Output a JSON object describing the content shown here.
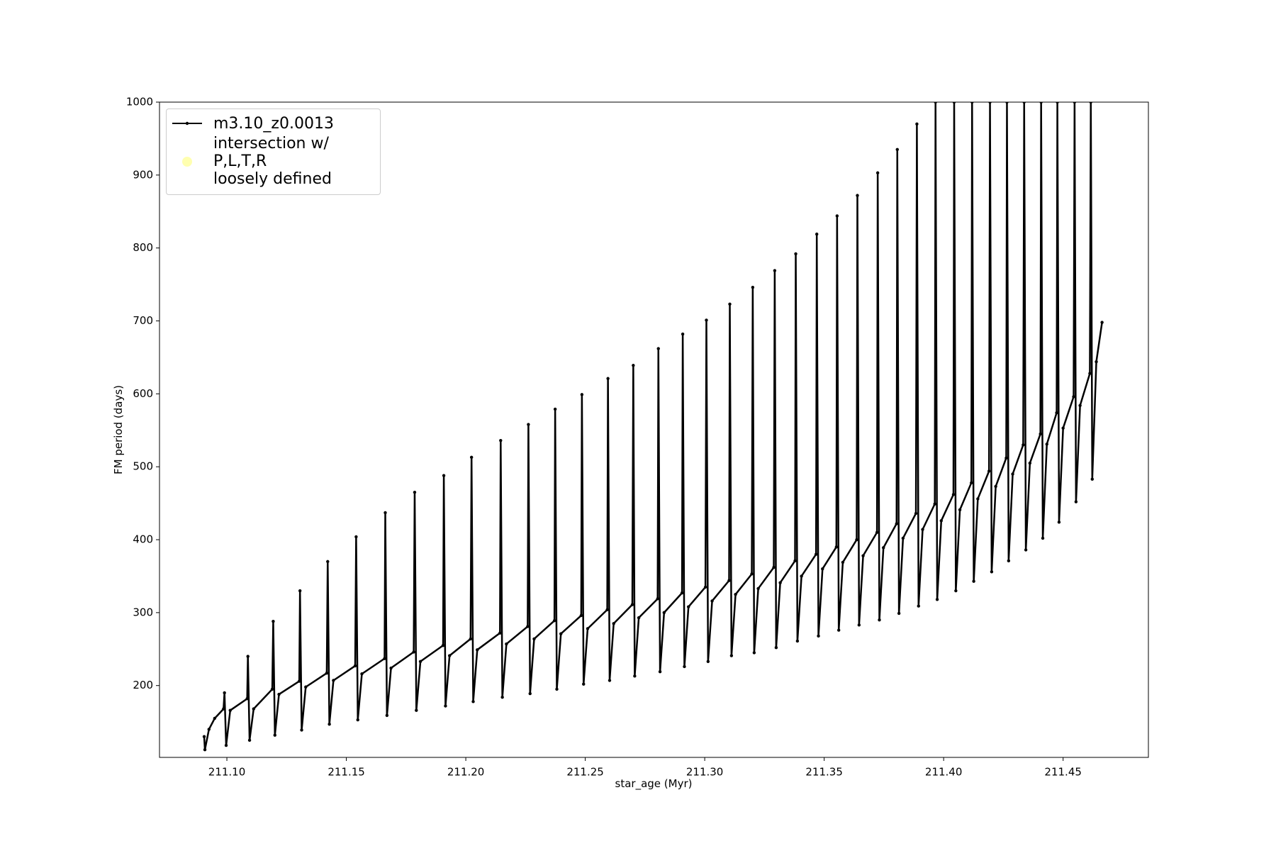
{
  "chart_data": {
    "type": "line",
    "xlabel": "star_age (Myr)",
    "ylabel": "FM period (days)",
    "xlim": [
      211.0718,
      211.4857
    ],
    "ylim": [
      101.5,
      1000
    ],
    "xticks": [
      {
        "value": 211.1,
        "label": "211.10"
      },
      211.15,
      {
        "value": 211.2,
        "label": "211.20"
      },
      211.25,
      {
        "value": 211.3,
        "label": "211.30"
      },
      211.35,
      {
        "value": 211.4,
        "label": "211.40"
      },
      211.45
    ],
    "yticks": [
      200,
      300,
      400,
      500,
      600,
      700,
      800,
      900,
      1000
    ],
    "legend": "upper left",
    "x": [
      211.0905,
      211.0908,
      211.0925,
      211.0949,
      211.0986,
      211.099,
      211.0997,
      211.1014,
      211.1085,
      211.1088,
      211.1095,
      211.1112,
      211.119,
      211.1194,
      211.1201,
      211.1218,
      211.1303,
      211.1306,
      211.1313,
      211.133,
      211.1418,
      211.1422,
      211.1429,
      211.1446,
      211.1537,
      211.1541,
      211.1548,
      211.1565,
      211.166,
      211.1663,
      211.167,
      211.1687,
      211.1782,
      211.1786,
      211.1793,
      211.181,
      211.1905,
      211.1908,
      211.1915,
      211.1932,
      211.202,
      211.2024,
      211.2031,
      211.2048,
      211.2143,
      211.2146,
      211.2153,
      211.217,
      211.2259,
      211.2262,
      211.2269,
      211.2286,
      211.2371,
      211.2374,
      211.2381,
      211.2398,
      211.2483,
      211.2486,
      211.2493,
      211.251,
      211.2592,
      211.2595,
      211.2602,
      211.2619,
      211.2697,
      211.2701,
      211.2707,
      211.2724,
      211.2803,
      211.2806,
      211.2813,
      211.283,
      211.2905,
      211.2908,
      211.2915,
      211.2932,
      211.3003,
      211.3007,
      211.3014,
      211.3031,
      211.3102,
      211.3105,
      211.3112,
      211.3129,
      211.3197,
      211.3201,
      211.3207,
      211.3224,
      211.3289,
      211.3293,
      211.3299,
      211.3316,
      211.3378,
      211.3381,
      211.3388,
      211.3405,
      211.3466,
      211.3469,
      211.3476,
      211.3493,
      211.3551,
      211.3554,
      211.3561,
      211.3578,
      211.3636,
      211.3639,
      211.3646,
      211.3663,
      211.3721,
      211.3724,
      211.3731,
      211.3748,
      211.3803,
      211.3806,
      211.3813,
      211.383,
      211.3884,
      211.3888,
      211.3895,
      211.3912,
      211.3963,
      211.3966,
      211.3973,
      211.399,
      211.4041,
      211.4044,
      211.4051,
      211.4068,
      211.4116,
      211.4119,
      211.4126,
      211.4143,
      211.419,
      211.4194,
      211.4201,
      211.4218,
      211.4262,
      211.4265,
      211.4272,
      211.4289,
      211.4333,
      211.4337,
      211.4344,
      211.4361,
      211.4405,
      211.4408,
      211.4415,
      211.4432,
      211.4473,
      211.4476,
      211.4483,
      211.45,
      211.4544,
      211.4548,
      211.4554,
      211.4571,
      211.4612,
      211.4616,
      211.4622,
      211.4639,
      211.4663
    ],
    "series": [
      {
        "name": "m3.10_z0.0013",
        "color": "#000000",
        "values": [
          130,
          112,
          140,
          155,
          168,
          190,
          118,
          166,
          182,
          240,
          125,
          168,
          195,
          288,
          132,
          188,
          206,
          330,
          139,
          198,
          217,
          370,
          147,
          207,
          227,
          404,
          153,
          216,
          237,
          437,
          159,
          224,
          246,
          465,
          166,
          233,
          255,
          488,
          172,
          241,
          264,
          513,
          178,
          249,
          272,
          536,
          184,
          257,
          281,
          558,
          189,
          264,
          289,
          579,
          195,
          271,
          296,
          599,
          202,
          278,
          304,
          621,
          207,
          285,
          311,
          639,
          213,
          293,
          319,
          662,
          219,
          300,
          327,
          682,
          226,
          308,
          335,
          701,
          233,
          316,
          344,
          723,
          241,
          325,
          353,
          746,
          245,
          333,
          362,
          769,
          252,
          341,
          371,
          792,
          261,
          350,
          380,
          819,
          268,
          360,
          390,
          844,
          276,
          369,
          400,
          872,
          283,
          378,
          410,
          903,
          290,
          389,
          422,
          935,
          299,
          402,
          436,
          970,
          309,
          414,
          449,
          1000,
          318,
          426,
          462,
          1000,
          330,
          441,
          478,
          1000,
          343,
          456,
          494,
          1000,
          356,
          473,
          512,
          1000,
          371,
          490,
          530,
          1000,
          386,
          505,
          545,
          1000,
          402,
          531,
          574,
          1000,
          424,
          553,
          596,
          1000,
          452,
          584,
          628,
          1000,
          483,
          644,
          698
        ]
      },
      {
        "name": "intersection w/ P,L,T,R\nloosely defined",
        "color": "#ffffb0"
      }
    ]
  }
}
